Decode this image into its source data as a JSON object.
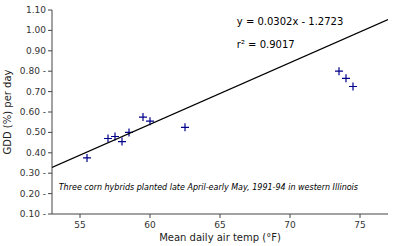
{
  "chart_data": {
    "type": "scatter",
    "xlabel": "Mean daily air temp (°F)",
    "ylabel": "GDD (%) per day",
    "annotations": [
      "y = 0.0302x - 1.2723",
      "r² = 0.9017",
      "Three corn hybrids planted late April-early May, 1991-94 in western Illinois"
    ],
    "series": [
      {
        "type": "scatter",
        "color": "#00008B",
        "marker": "+",
        "x": [
          55.5,
          57.0,
          57.5,
          58.0,
          58.5,
          59.5,
          60.0,
          62.5,
          73.5,
          74.0,
          74.5
        ],
        "values": [
          0.375,
          0.47,
          0.48,
          0.455,
          0.5,
          0.575,
          0.555,
          0.525,
          0.8,
          0.765,
          0.725
        ]
      },
      {
        "type": "line",
        "color": "#000000",
        "x": [
          53,
          77
        ],
        "values": [
          0.3283,
          1.0531
        ]
      }
    ],
    "xlim": [
      53,
      77
    ],
    "ylim": [
      0.1,
      1.1
    ],
    "xticks": [
      55,
      60,
      65,
      70,
      75
    ],
    "yticks": [
      {
        "value": 0.1,
        "label": "0.10 -"
      },
      {
        "value": 0.2,
        "label": "0.20 -"
      },
      {
        "value": 0.3,
        "label": "0.30 -"
      },
      {
        "value": 0.4,
        "label": "0.40"
      },
      {
        "value": 0.5,
        "label": "0.50"
      },
      {
        "value": 0.6,
        "label": "0.60 -"
      },
      {
        "value": 0.7,
        "label": "0.70"
      },
      {
        "value": 0.8,
        "label": "0.80 -"
      },
      {
        "value": 0.9,
        "label": "0.90"
      },
      {
        "value": 1.0,
        "label": "1.00"
      },
      {
        "value": 1.1,
        "label": "1.10"
      }
    ]
  }
}
